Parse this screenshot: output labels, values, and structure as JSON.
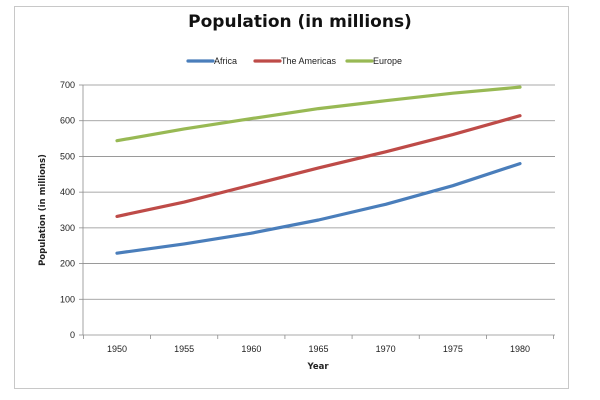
{
  "chart_data": {
    "type": "line",
    "title": "Population (in millions)",
    "xlabel": "Year",
    "ylabel": "Population (in millions)",
    "x": [
      1950,
      1955,
      1960,
      1965,
      1970,
      1975,
      1980
    ],
    "ylim": [
      0,
      700
    ],
    "yticks": [
      0,
      100,
      200,
      300,
      400,
      500,
      600,
      700
    ],
    "grid": true,
    "legend_position": "top",
    "series": [
      {
        "name": "Africa",
        "color": "#4a7ebb",
        "values": [
          229,
          255,
          285,
          322,
          366,
          418,
          480
        ]
      },
      {
        "name": "The Americas",
        "color": "#be4b48",
        "values": [
          332,
          372,
          420,
          468,
          513,
          561,
          614
        ]
      },
      {
        "name": "Europe",
        "color": "#98b954",
        "values": [
          544,
          577,
          606,
          634,
          656,
          677,
          694
        ]
      }
    ]
  }
}
